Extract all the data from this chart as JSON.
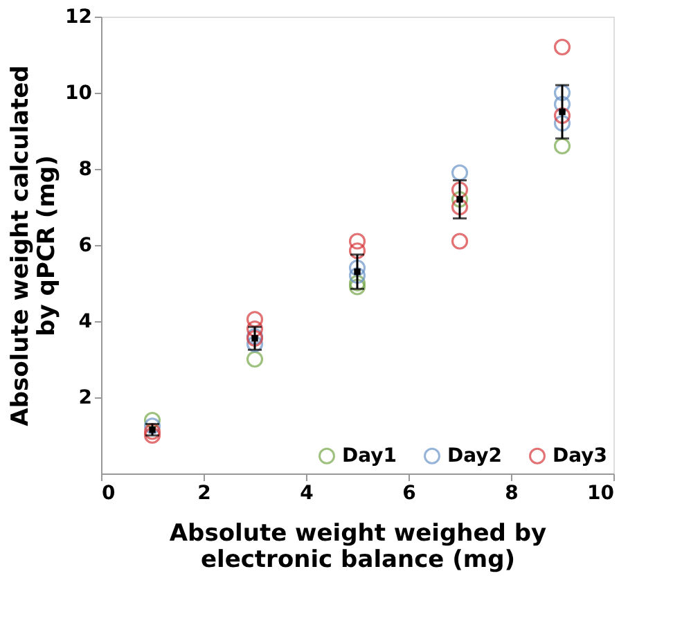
{
  "chart_data": {
    "type": "scatter",
    "xlabel": "Absolute weight weighed by electronic balance (mg)",
    "ylabel": "Absolute weight calculated by qPCR (mg)",
    "xlim": [
      0,
      10
    ],
    "xticks": [
      0,
      2,
      4,
      6,
      8,
      10
    ],
    "ylim": [
      0,
      12
    ],
    "yticks": [
      2,
      4,
      6,
      8,
      10,
      12
    ],
    "grid": false,
    "legend": "bottom right",
    "marker": "circle",
    "series": [
      {
        "name": "Day1",
        "color": "#77a84a",
        "x": [
          1,
          3,
          5,
          5,
          7,
          9
        ],
        "values": [
          1.4,
          3.0,
          4.9,
          5.0,
          7.2,
          8.6
        ]
      },
      {
        "name": "Day2",
        "color": "#6a93c8",
        "x": [
          1,
          3,
          3,
          5,
          5,
          7,
          9,
          9,
          9
        ],
        "values": [
          1.25,
          3.6,
          3.4,
          5.4,
          5.2,
          7.9,
          10.0,
          9.7,
          9.2
        ]
      },
      {
        "name": "Day3",
        "color": "#d6373a",
        "x": [
          1,
          1,
          3,
          3,
          3,
          5,
          5,
          7,
          7,
          7,
          9,
          9
        ],
        "values": [
          1.0,
          1.1,
          4.05,
          3.8,
          3.55,
          6.1,
          5.85,
          7.45,
          7.0,
          6.1,
          11.2,
          9.4
        ]
      },
      {
        "color": "#000000",
        "marker": "square",
        "x": [
          1,
          3,
          5,
          7,
          9
        ],
        "values": [
          1.15,
          3.55,
          5.3,
          7.2,
          9.5
        ],
        "errors": [
          0.15,
          0.3,
          0.45,
          0.5,
          0.7
        ]
      }
    ]
  }
}
